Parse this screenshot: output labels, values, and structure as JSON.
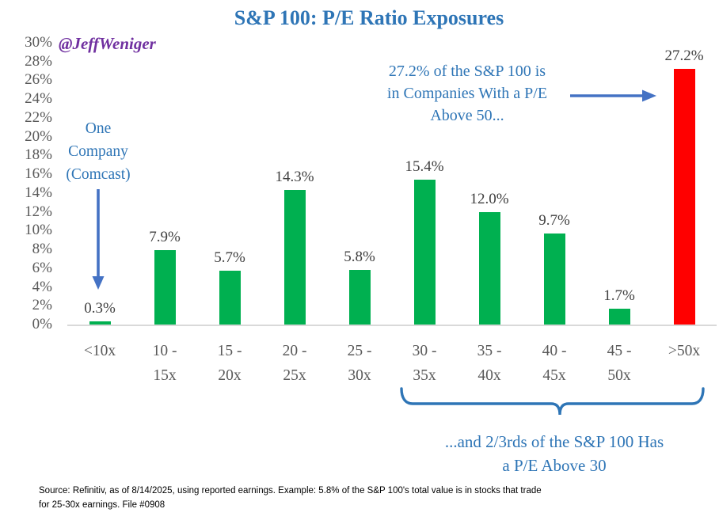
{
  "page": {
    "title": "S&P 100: P/E Ratio Exposures",
    "watermark": "@JeffWeniger"
  },
  "annotations": {
    "one_company": "One\nCompany\n(Comcast)",
    "above_50": "27.2% of the S&P 100 is\nin Companies With a P/E\nAbove 50...",
    "above_30": "...and 2/3rds of the S&P 100 Has\na P/E Above 30"
  },
  "source_note": "Source: Refinitiv, as of 8/14/2025, using reported earnings. Example: 5.8% of the S&P 100's total value is in stocks that trade\nfor 25-30x earnings. File #0908",
  "colors": {
    "accent_blue": "#2E75B6",
    "arrow_blue": "#4472C4",
    "watermark_purple": "#7030A0",
    "bar_green": "#00B050",
    "bar_red": "#FF0000",
    "label_gray": "#595959",
    "data_label_gray": "#404040",
    "axis_line_gray": "#D9D9D9"
  },
  "chart_data": {
    "type": "bar",
    "title": "S&P 100: P/E Ratio Exposures",
    "categories": [
      "<10x",
      "10 -\n15x",
      "15 -\n20x",
      "20 -\n25x",
      "25 -\n30x",
      "30 -\n35x",
      "35 -\n40x",
      "40 -\n45x",
      "45 -\n50x",
      ">50x"
    ],
    "values": [
      0.3,
      7.9,
      5.7,
      14.3,
      5.8,
      15.4,
      12.0,
      9.7,
      1.7,
      27.2
    ],
    "data_labels": [
      "0.3%",
      "7.9%",
      "5.7%",
      "14.3%",
      "5.8%",
      "15.4%",
      "12.0%",
      "9.7%",
      "1.7%",
      "27.2%"
    ],
    "bar_colors": [
      "#00B050",
      "#00B050",
      "#00B050",
      "#00B050",
      "#00B050",
      "#00B050",
      "#00B050",
      "#00B050",
      "#00B050",
      "#FF0000"
    ],
    "ylim": [
      0,
      30
    ],
    "ytick_labels": [
      "30%",
      "28%",
      "26%",
      "24%",
      "22%",
      "20%",
      "18%",
      "16%",
      "14%",
      "12%",
      "10%",
      "8%",
      "6%",
      "4%",
      "2%",
      "0%"
    ],
    "xlabel": "",
    "ylabel": "",
    "grid": false,
    "legend": false
  }
}
